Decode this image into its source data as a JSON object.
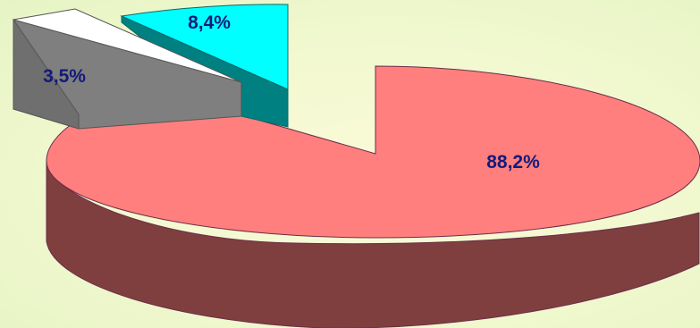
{
  "chart_data": {
    "type": "pie",
    "style": "3d-exploded",
    "title": "",
    "slices": [
      {
        "value": 88.2,
        "label": "88,2%",
        "top_color": "#ff7f7e",
        "side_color": "#7f3f3f"
      },
      {
        "value": 8.4,
        "label": "8,4%",
        "top_color": "#00ffff",
        "side_color": "#008080"
      },
      {
        "value": 3.5,
        "label": "3,5%",
        "top_color": "#7f7f7f",
        "side_color": "#7f7f7f"
      },
      {
        "value": null,
        "label": "",
        "top_color": "#ffffff",
        "side_color": "#ffffff"
      }
    ],
    "legend": "none"
  }
}
